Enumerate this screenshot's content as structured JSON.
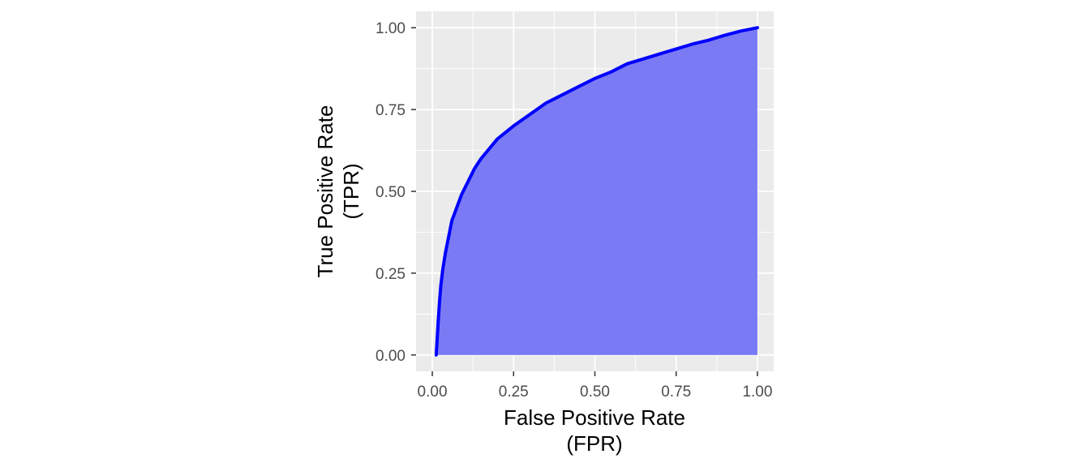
{
  "chart_data": {
    "type": "area",
    "title": "",
    "xlabel": [
      "False Positive Rate",
      "(FPR)"
    ],
    "ylabel": [
      "True Positive Rate",
      "(TPR)"
    ],
    "xlim": [
      -0.05,
      1.05
    ],
    "ylim": [
      -0.05,
      1.05
    ],
    "x_ticks": [
      0,
      0.25,
      0.5,
      0.75,
      1
    ],
    "x_tick_labels": [
      "0.00",
      "0.25",
      "0.50",
      "0.75",
      "1.00"
    ],
    "y_ticks": [
      0,
      0.25,
      0.5,
      0.75,
      1
    ],
    "y_tick_labels": [
      "0.00",
      "0.25",
      "0.50",
      "0.75",
      "1.00"
    ],
    "grid": true,
    "legend": "none",
    "series": [
      {
        "x": [
          0.012,
          0.015,
          0.018,
          0.022,
          0.026,
          0.032,
          0.04,
          0.05,
          0.06,
          0.075,
          0.09,
          0.11,
          0.13,
          0.15,
          0.175,
          0.2,
          0.25,
          0.3,
          0.35,
          0.4,
          0.45,
          0.5,
          0.55,
          0.6,
          0.65,
          0.7,
          0.75,
          0.8,
          0.85,
          0.9,
          0.95,
          1.0
        ],
        "y": [
          0.0,
          0.05,
          0.1,
          0.16,
          0.21,
          0.26,
          0.31,
          0.36,
          0.41,
          0.45,
          0.49,
          0.53,
          0.57,
          0.6,
          0.63,
          0.66,
          0.7,
          0.735,
          0.77,
          0.795,
          0.82,
          0.845,
          0.865,
          0.89,
          0.905,
          0.92,
          0.935,
          0.95,
          0.962,
          0.977,
          0.99,
          1.0
        ]
      }
    ],
    "colors": {
      "line": "#0000ff",
      "fill": "#7575f5",
      "panel": "#ebebeb",
      "grid_major": "#ffffff",
      "tick": "#4d4d4d"
    }
  }
}
